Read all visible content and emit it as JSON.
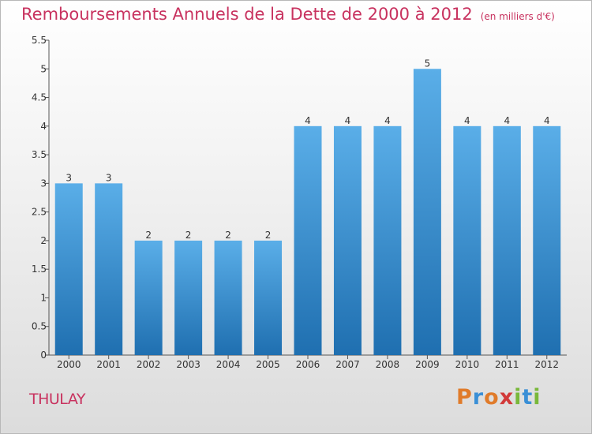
{
  "header": {
    "title": "Remboursements Annuels de la Dette de 2000 à 2012",
    "unit": "(en milliers d'€)"
  },
  "footer": {
    "town": "THULAY",
    "logo": "Proxiti"
  },
  "colors": {
    "title": "#c8325f",
    "bar_top": "#5aaee8",
    "bar_bottom": "#1f6fb0",
    "axis": "#555555",
    "logo_letters": [
      "#e07b2a",
      "#3a8fd6",
      "#e07b2a",
      "#d23a3a",
      "#79b83a",
      "#3a8fd6",
      "#79b83a"
    ]
  },
  "chart_data": {
    "type": "bar",
    "categories": [
      "2000",
      "2001",
      "2002",
      "2003",
      "2004",
      "2005",
      "2006",
      "2007",
      "2008",
      "2009",
      "2010",
      "2011",
      "2012"
    ],
    "values": [
      3,
      3,
      2,
      2,
      2,
      2,
      4,
      4,
      4,
      5,
      4,
      4,
      4
    ],
    "data_labels": [
      "3",
      "3",
      "2",
      "2",
      "2",
      "2",
      "4",
      "4",
      "4",
      "5",
      "4",
      "4",
      "4"
    ],
    "yticks": [
      "0",
      "0.5",
      "1",
      "1.5",
      "2",
      "2.5",
      "3",
      "3.5",
      "4",
      "4.5",
      "5",
      "5.5"
    ],
    "ylim": [
      0,
      5.5
    ],
    "grid": false,
    "legend": "none"
  }
}
